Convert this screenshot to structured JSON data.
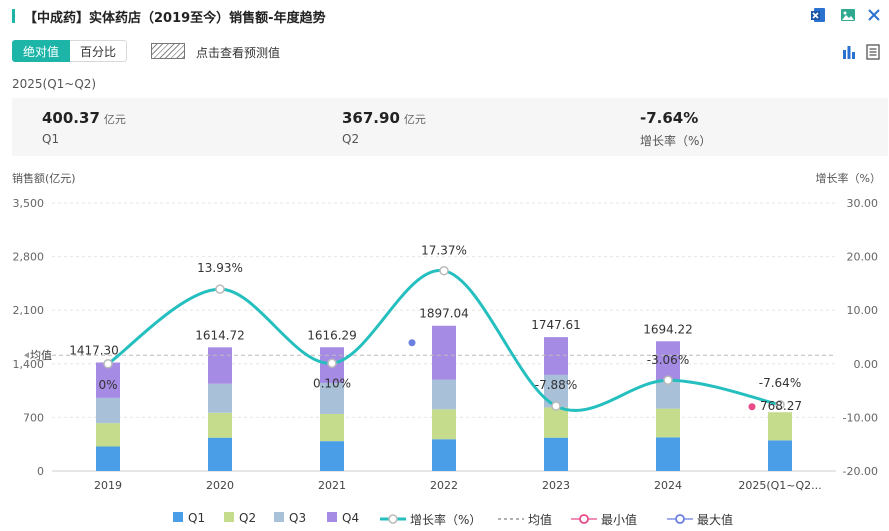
{
  "header": {
    "title": "【中成药】实体药店（2019至今）销售额-年度趋势"
  },
  "tabs": [
    {
      "label": "绝对值",
      "active": true
    },
    {
      "label": "百分比",
      "active": false
    }
  ],
  "forecast_hint": "点击查看预测值",
  "period_label": "2025(Q1~Q2)",
  "summary": [
    {
      "value": "400.37",
      "unit": "亿元",
      "label": "Q1"
    },
    {
      "value": "367.90",
      "unit": "亿元",
      "label": "Q2"
    },
    {
      "value": "-7.64%",
      "unit": "",
      "label": "增长率（%）"
    }
  ],
  "axis_labels": {
    "left": "销售额(亿元)",
    "right": "增长率（%）"
  },
  "legend": [
    {
      "label": "Q1",
      "kind": "box",
      "color": "#4a9ee8"
    },
    {
      "label": "Q2",
      "kind": "box",
      "color": "#c6dc8d"
    },
    {
      "label": "Q3",
      "kind": "box",
      "color": "#a9c0d9"
    },
    {
      "label": "Q4",
      "kind": "box",
      "color": "#a58be3"
    },
    {
      "label": "增长率（%）",
      "kind": "line",
      "color": "#24bfbe"
    },
    {
      "label": "均值",
      "kind": "dash",
      "color": "#999999"
    },
    {
      "label": "最小值",
      "kind": "ring",
      "color": "#e84a8a"
    },
    {
      "label": "最大值",
      "kind": "ring",
      "color": "#6b7fe0"
    }
  ],
  "chart_data": {
    "type": "bar",
    "stacked": true,
    "categories": [
      "2019",
      "2020",
      "2021",
      "2022",
      "2023",
      "2024",
      "2025(Q1~Q2..."
    ],
    "series": [
      {
        "name": "Q1",
        "color": "#4a9ee8",
        "values": [
          320,
          435,
          390,
          415,
          435,
          440,
          400
        ]
      },
      {
        "name": "Q2",
        "color": "#c6dc8d",
        "values": [
          305,
          325,
          355,
          390,
          395,
          375,
          368
        ]
      },
      {
        "name": "Q3",
        "color": "#a9c0d9",
        "values": [
          330,
          380,
          405,
          390,
          425,
          345,
          0
        ]
      },
      {
        "name": "Q4",
        "color": "#a58be3",
        "values": [
          462,
          475,
          466,
          702,
          493,
          534,
          0
        ]
      }
    ],
    "totals": [
      "1417.30",
      "1614.72",
      "1616.29",
      "1897.04",
      "1747.61",
      "1694.22",
      "768.27"
    ],
    "growth_series": {
      "name": "增长率（%）",
      "color": "#24bfbe",
      "values": [
        0,
        13.93,
        0.1,
        17.37,
        -7.88,
        -3.06,
        -7.64
      ],
      "labels": [
        "0%",
        "13.93%",
        "0.10%",
        "17.37%",
        "-7.88%",
        "-3.06%",
        "-7.64%"
      ]
    },
    "average": {
      "label": "均值",
      "value": 1512
    },
    "max_marker_index": 3,
    "min_marker_index": 6,
    "y_left": {
      "min": 0,
      "max": 3500,
      "ticks": [
        "3,500",
        "2,800",
        "2,100",
        "1,400",
        "700",
        "0"
      ]
    },
    "y_right": {
      "min": -20,
      "max": 30,
      "ticks": [
        "30.00",
        "20.00",
        "10.00",
        "0.00",
        "-10.00",
        "-20.00"
      ]
    }
  }
}
